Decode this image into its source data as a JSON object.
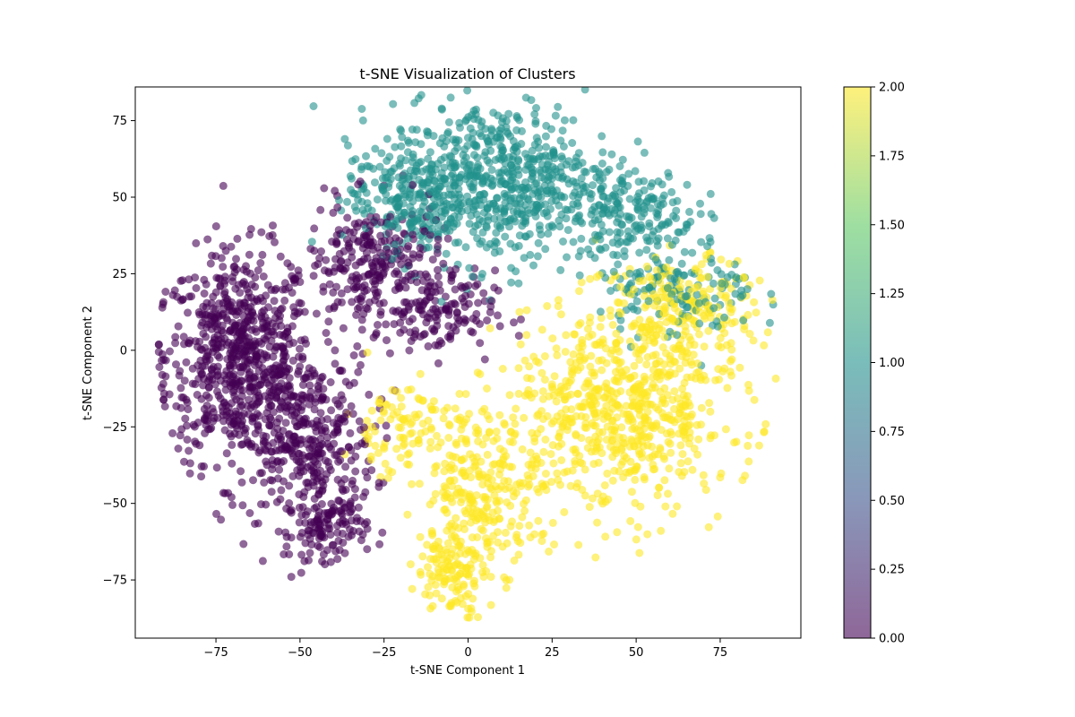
{
  "chart_data": {
    "type": "scatter",
    "title": "t-SNE Visualization of Clusters",
    "xlabel": "t-SNE Component 1",
    "ylabel": "t-SNE Component 2",
    "xlim": [
      -99,
      99
    ],
    "ylim": [
      -94,
      86
    ],
    "x_ticks": [
      -75,
      -50,
      -25,
      0,
      25,
      50,
      75
    ],
    "y_ticks": [
      -75,
      -50,
      -25,
      0,
      25,
      50,
      75
    ],
    "x_tick_labels": [
      "−75",
      "−50",
      "−25",
      "0",
      "25",
      "50",
      "75"
    ],
    "y_tick_labels": [
      "−75",
      "−50",
      "−25",
      "0",
      "25",
      "50",
      "75"
    ],
    "grid": false,
    "marker_alpha": 0.6,
    "colormap": "viridis",
    "colorbar": {
      "range": [
        0,
        2
      ],
      "ticks": [
        0,
        0.25,
        0.5,
        0.75,
        1.0,
        1.25,
        1.5,
        1.75,
        2.0
      ],
      "tick_labels": [
        "0.00",
        "0.25",
        "0.50",
        "0.75",
        "1.00",
        "1.25",
        "1.50",
        "1.75",
        "2.00"
      ],
      "colors": [
        "#440154",
        "#3b528b",
        "#21918c",
        "#5ec962",
        "#fde725"
      ]
    },
    "clusters": [
      {
        "value": 0,
        "color": "#440154",
        "regions": [
          {
            "center": [
              -68,
              -2
            ],
            "spread": [
              11,
              17
            ],
            "count": 700
          },
          {
            "center": [
              -48,
              -30
            ],
            "spread": [
              10,
              14
            ],
            "count": 380
          },
          {
            "center": [
              -42,
              -58
            ],
            "spread": [
              6,
              5
            ],
            "count": 110
          },
          {
            "center": [
              -28,
              28
            ],
            "spread": [
              10,
              10
            ],
            "count": 260
          },
          {
            "center": [
              -10,
              12
            ],
            "spread": [
              9,
              7
            ],
            "count": 140
          }
        ]
      },
      {
        "value": 1,
        "color": "#21918c",
        "regions": [
          {
            "center": [
              10,
              55
            ],
            "spread": [
              17,
              13
            ],
            "count": 650
          },
          {
            "center": [
              -18,
              50
            ],
            "spread": [
              9,
              9
            ],
            "count": 200
          },
          {
            "center": [
              50,
              45
            ],
            "spread": [
              9,
              7
            ],
            "count": 150
          },
          {
            "center": [
              62,
              20
            ],
            "spread": [
              12,
              8
            ],
            "count": 140
          }
        ]
      },
      {
        "value": 2,
        "color": "#fde725",
        "regions": [
          {
            "center": [
              45,
              -20
            ],
            "spread": [
              17,
              17
            ],
            "count": 700
          },
          {
            "center": [
              65,
              12
            ],
            "spread": [
              10,
              9
            ],
            "count": 200
          },
          {
            "center": [
              5,
              -45
            ],
            "spread": [
              9,
              13
            ],
            "count": 250
          },
          {
            "center": [
              -5,
              -72
            ],
            "spread": [
              5,
              7
            ],
            "count": 120
          },
          {
            "center": [
              -20,
              -25
            ],
            "spread": [
              8,
              8
            ],
            "count": 100
          }
        ]
      }
    ]
  }
}
